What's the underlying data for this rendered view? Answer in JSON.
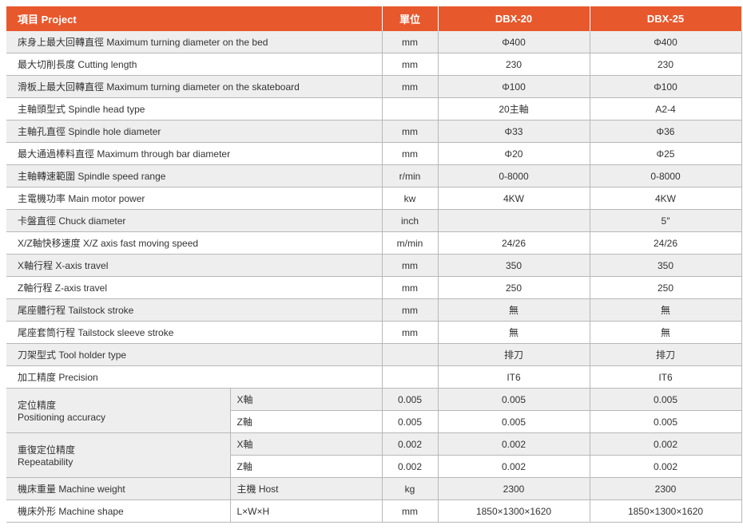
{
  "header": {
    "project": "項目  Project",
    "unit": "單位",
    "model1": "DBX-20",
    "model2": "DBX-25"
  },
  "rows": [
    {
      "label": "床身上最大回轉直徑  Maximum turning diameter on the bed",
      "unit": "mm",
      "v1": "Φ400",
      "v2": "Φ400"
    },
    {
      "label": "最大切削長度  Cutting length",
      "unit": "mm",
      "v1": "230",
      "v2": "230"
    },
    {
      "label": "滑板上最大回轉直徑  Maximum turning diameter on the skateboard",
      "unit": "mm",
      "v1": "Φ100",
      "v2": "Φ100"
    },
    {
      "label": "主軸頭型式  Spindle head type",
      "unit": "",
      "v1": "20主軸",
      "v2": "A2-4"
    },
    {
      "label": "主軸孔直徑  Spindle hole diameter",
      "unit": "mm",
      "v1": "Φ33",
      "v2": "Φ36"
    },
    {
      "label": "最大通過棒料直徑  Maximum through bar diameter",
      "unit": "mm",
      "v1": "Φ20",
      "v2": "Φ25"
    },
    {
      "label": "主軸轉速範圍  Spindle speed range",
      "unit": "r/min",
      "v1": "0-8000",
      "v2": "0-8000"
    },
    {
      "label": "主電機功率  Main motor power",
      "unit": "kw",
      "v1": "4KW",
      "v2": "4KW"
    },
    {
      "label": "卡盤直徑  Chuck diameter",
      "unit": "inch",
      "v1": "",
      "v2": "5″"
    },
    {
      "label": "X/Z軸快移速度  X/Z axis fast moving speed",
      "unit": "m/min",
      "v1": "24/26",
      "v2": "24/26"
    },
    {
      "label": "X軸行程  X-axis travel",
      "unit": "mm",
      "v1": "350",
      "v2": "350"
    },
    {
      "label": "Z軸行程  Z-axis travel",
      "unit": "mm",
      "v1": "250",
      "v2": "250"
    },
    {
      "label": "尾座體行程  Tailstock stroke",
      "unit": "mm",
      "v1": "無",
      "v2": "無"
    },
    {
      "label": "尾座套筒行程  Tailstock sleeve stroke",
      "unit": "mm",
      "v1": "無",
      "v2": "無"
    },
    {
      "label": "刀架型式  Tool holder type",
      "unit": "",
      "v1": "排刀",
      "v2": "排刀"
    },
    {
      "label": "加工精度  Precision",
      "unit": "",
      "v1": "IT6",
      "v2": "IT6"
    }
  ],
  "groups": [
    {
      "label": "定位精度\nPositioning accuracy",
      "sub": [
        {
          "axis": "X軸",
          "tol": "0.005",
          "v1": "0.005",
          "v2": "0.005"
        },
        {
          "axis": "Z軸",
          "tol": "0.005",
          "v1": "0.005",
          "v2": "0.005"
        }
      ]
    },
    {
      "label": "重復定位精度\nRepeatability",
      "sub": [
        {
          "axis": "X軸",
          "tol": "0.002",
          "v1": "0.002",
          "v2": "0.002"
        },
        {
          "axis": "Z軸",
          "tol": "0.002",
          "v1": "0.002",
          "v2": "0.002"
        }
      ]
    }
  ],
  "tail": [
    {
      "label": "機床重量  Machine weight",
      "sub": "主機  Host",
      "unit": "kg",
      "v1": "2300",
      "v2": "2300"
    },
    {
      "label": "機床外形  Machine shape",
      "sub": "L×W×H",
      "unit": "mm",
      "v1": "1850×1300×1620",
      "v2": "1850×1300×1620"
    }
  ]
}
